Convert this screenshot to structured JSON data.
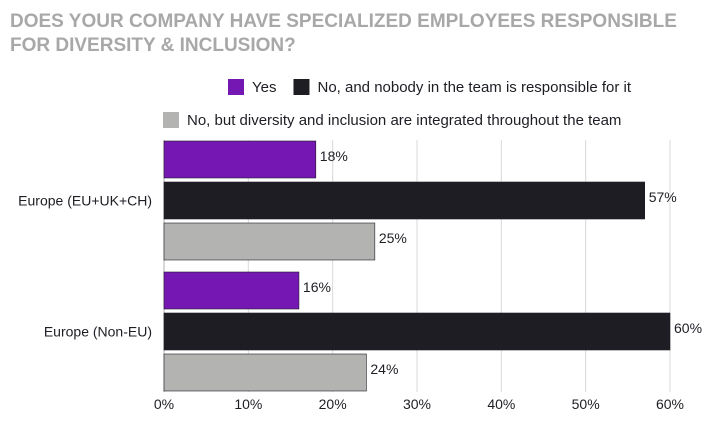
{
  "chart_data": {
    "type": "bar",
    "orientation": "horizontal",
    "title": "DOES YOUR COMPANY HAVE SPECIALIZED EMPLOYEES RESPONSIBLE FOR DIVERSITY & INCLUSION?",
    "categories": [
      "Europe (EU+UK+CH)",
      "Europe (Non-EU)"
    ],
    "series": [
      {
        "name": "Yes",
        "color": "#7417b3",
        "values": [
          18,
          16
        ],
        "labels": [
          "18%",
          "16%"
        ]
      },
      {
        "name": "No, and nobody in the team is responsible for it",
        "color": "#1f1d24",
        "values": [
          57,
          60
        ],
        "labels": [
          "57%",
          "60%"
        ]
      },
      {
        "name": "No, but diversity and inclusion are integrated throughout the team",
        "color": "#b3b3b1",
        "values": [
          25,
          24
        ],
        "labels": [
          "25%",
          "24%"
        ]
      }
    ],
    "x_ticks": [
      0,
      10,
      20,
      30,
      40,
      50,
      60
    ],
    "x_tick_labels": [
      "0%",
      "10%",
      "20%",
      "30%",
      "40%",
      "50%",
      "60%"
    ],
    "xlim": [
      0,
      60
    ],
    "grid": true,
    "legend_position": "top"
  }
}
